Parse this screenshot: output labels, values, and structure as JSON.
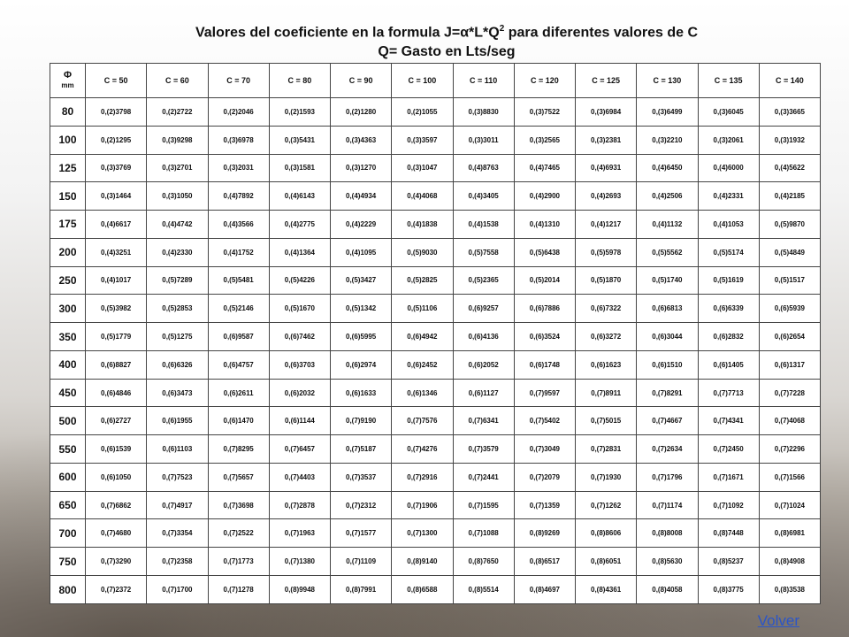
{
  "title": {
    "line1_prefix": "Valores del coeficiente en la formula J=α*L*Q",
    "line1_exponent": "2",
    "line1_suffix": " para diferentes valores de C",
    "line2": "Q= Gasto en Lts/seg"
  },
  "table": {
    "phi_symbol": "Φ",
    "phi_unit": "mm",
    "columns": [
      "C = 50",
      "C = 60",
      "C = 70",
      "C = 80",
      "C = 90",
      "C = 100",
      "C = 110",
      "C = 120",
      "C = 125",
      "C = 130",
      "C = 135",
      "C = 140"
    ],
    "rows": [
      {
        "d": "80",
        "v": [
          "0,(2)3798",
          "0,(2)2722",
          "0,(2)2046",
          "0,(2)1593",
          "0,(2)1280",
          "0,(2)1055",
          "0,(3)8830",
          "0,(3)7522",
          "0,(3)6984",
          "0,(3)6499",
          "0,(3)6045",
          "0,(3)3665"
        ]
      },
      {
        "d": "100",
        "v": [
          "0,(2)1295",
          "0,(3)9298",
          "0,(3)6978",
          "0,(3)5431",
          "0,(3)4363",
          "0,(3)3597",
          "0,(3)3011",
          "0,(3)2565",
          "0,(3)2381",
          "0,(3)2210",
          "0,(3)2061",
          "0,(3)1932"
        ]
      },
      {
        "d": "125",
        "v": [
          "0,(3)3769",
          "0,(3)2701",
          "0,(3)2031",
          "0,(3)1581",
          "0,(3)1270",
          "0,(3)1047",
          "0,(4)8763",
          "0,(4)7465",
          "0,(4)6931",
          "0,(4)6450",
          "0,(4)6000",
          "0,(4)5622"
        ]
      },
      {
        "d": "150",
        "v": [
          "0,(3)1464",
          "0,(3)1050",
          "0,(4)7892",
          "0,(4)6143",
          "0,(4)4934",
          "0,(4)4068",
          "0,(4)3405",
          "0,(4)2900",
          "0,(4)2693",
          "0,(4)2506",
          "0,(4)2331",
          "0,(4)2185"
        ]
      },
      {
        "d": "175",
        "v": [
          "0,(4)6617",
          "0,(4)4742",
          "0,(4)3566",
          "0,(4)2775",
          "0,(4)2229",
          "0,(4)1838",
          "0,(4)1538",
          "0,(4)1310",
          "0,(4)1217",
          "0,(4)1132",
          "0,(4)1053",
          "0,(5)9870"
        ]
      },
      {
        "d": "200",
        "v": [
          "0,(4)3251",
          "0,(4)2330",
          "0,(4)1752",
          "0,(4)1364",
          "0,(4)1095",
          "0,(5)9030",
          "0,(5)7558",
          "0,(5)6438",
          "0,(5)5978",
          "0,(5)5562",
          "0,(5)5174",
          "0,(5)4849"
        ]
      },
      {
        "d": "250",
        "v": [
          "0,(4)1017",
          "0,(5)7289",
          "0,(5)5481",
          "0,(5)4226",
          "0,(5)3427",
          "0,(5)2825",
          "0,(5)2365",
          "0,(5)2014",
          "0,(5)1870",
          "0,(5)1740",
          "0,(5)1619",
          "0,(5)1517"
        ]
      },
      {
        "d": "300",
        "v": [
          "0,(5)3982",
          "0,(5)2853",
          "0,(5)2146",
          "0,(5)1670",
          "0,(5)1342",
          "0,(5)1106",
          "0,(6)9257",
          "0,(6)7886",
          "0,(6)7322",
          "0,(6)6813",
          "0,(6)6339",
          "0,(6)5939"
        ]
      },
      {
        "d": "350",
        "v": [
          "0,(5)1779",
          "0,(5)1275",
          "0,(6)9587",
          "0,(6)7462",
          "0,(6)5995",
          "0,(6)4942",
          "0,(6)4136",
          "0,(6)3524",
          "0,(6)3272",
          "0,(6)3044",
          "0,(6)2832",
          "0,(6)2654"
        ]
      },
      {
        "d": "400",
        "v": [
          "0,(6)8827",
          "0,(6)6326",
          "0,(6)4757",
          "0,(6)3703",
          "0,(6)2974",
          "0,(6)2452",
          "0,(6)2052",
          "0,(6)1748",
          "0,(6)1623",
          "0,(6)1510",
          "0,(6)1405",
          "0,(6)1317"
        ]
      },
      {
        "d": "450",
        "v": [
          "0,(6)4846",
          "0,(6)3473",
          "0,(6)2611",
          "0,(6)2032",
          "0,(6)1633",
          "0,(6)1346",
          "0,(6)1127",
          "0,(7)9597",
          "0,(7)8911",
          "0,(7)8291",
          "0,(7)7713",
          "0,(7)7228"
        ]
      },
      {
        "d": "500",
        "v": [
          "0,(6)2727",
          "0,(6)1955",
          "0,(6)1470",
          "0,(6)1144",
          "0,(7)9190",
          "0,(7)7576",
          "0,(7)6341",
          "0,(7)5402",
          "0,(7)5015",
          "0,(7)4667",
          "0,(7)4341",
          "0,(7)4068"
        ]
      },
      {
        "d": "550",
        "v": [
          "0,(6)1539",
          "0,(6)1103",
          "0,(7)8295",
          "0,(7)6457",
          "0,(7)5187",
          "0,(7)4276",
          "0,(7)3579",
          "0,(7)3049",
          "0,(7)2831",
          "0,(7)2634",
          "0,(7)2450",
          "0,(7)2296"
        ]
      },
      {
        "d": "600",
        "v": [
          "0,(6)1050",
          "0,(7)7523",
          "0,(7)5657",
          "0,(7)4403",
          "0,(7)3537",
          "0,(7)2916",
          "0,(7)2441",
          "0,(7)2079",
          "0,(7)1930",
          "0,(7)1796",
          "0,(7)1671",
          "0,(7)1566"
        ]
      },
      {
        "d": "650",
        "v": [
          "0,(7)6862",
          "0,(7)4917",
          "0,(7)3698",
          "0,(7)2878",
          "0,(7)2312",
          "0,(7)1906",
          "0,(7)1595",
          "0,(7)1359",
          "0,(7)1262",
          "0,(7)1174",
          "0,(7)1092",
          "0,(7)1024"
        ]
      },
      {
        "d": "700",
        "v": [
          "0,(7)4680",
          "0,(7)3354",
          "0,(7)2522",
          "0,(7)1963",
          "0,(7)1577",
          "0,(7)1300",
          "0,(7)1088",
          "0,(8)9269",
          "0,(8)8606",
          "0,(8)8008",
          "0,(8)7448",
          "0,(8)6981"
        ]
      },
      {
        "d": "750",
        "v": [
          "0,(7)3290",
          "0,(7)2358",
          "0,(7)1773",
          "0,(7)1380",
          "0,(7)1109",
          "0,(8)9140",
          "0,(8)7650",
          "0,(8)6517",
          "0,(8)6051",
          "0,(8)5630",
          "0,(8)5237",
          "0,(8)4908"
        ]
      },
      {
        "d": "800",
        "v": [
          "0,(7)2372",
          "0,(7)1700",
          "0,(7)1278",
          "0,(8)9948",
          "0,(8)7991",
          "0,(8)6588",
          "0,(8)5514",
          "0,(8)4697",
          "0,(8)4361",
          "0,(8)4058",
          "0,(8)3775",
          "0,(8)3538"
        ]
      }
    ]
  },
  "volver_label": "Volver"
}
